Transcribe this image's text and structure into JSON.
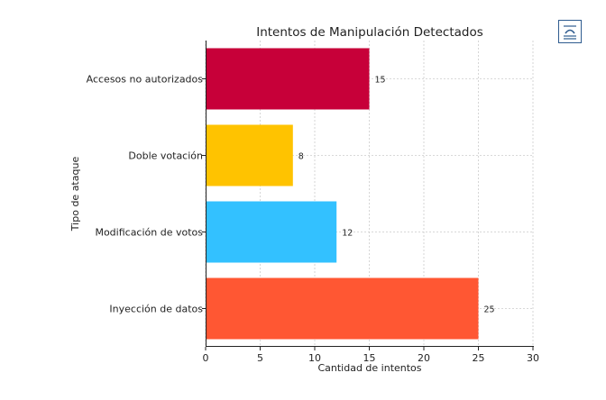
{
  "chart_data": {
    "type": "bar",
    "orientation": "horizontal",
    "title": "Intentos de Manipulación Detectados",
    "xlabel": "Cantidad de intentos",
    "ylabel": "Tipo de ataque",
    "xlim": [
      0,
      30
    ],
    "xticks": [
      "0",
      "5",
      "10",
      "15",
      "20",
      "25",
      "30"
    ],
    "grid": true,
    "categories": [
      "Inyección de datos",
      "Modificación de votos",
      "Doble votación",
      "Accesos no autorizados"
    ],
    "values": [
      25,
      12,
      8,
      15
    ],
    "colors": [
      "#ff5733",
      "#33c1ff",
      "#ffc300",
      "#c70039"
    ]
  },
  "toolbar": {
    "corner_icon": "document-image-icon"
  }
}
